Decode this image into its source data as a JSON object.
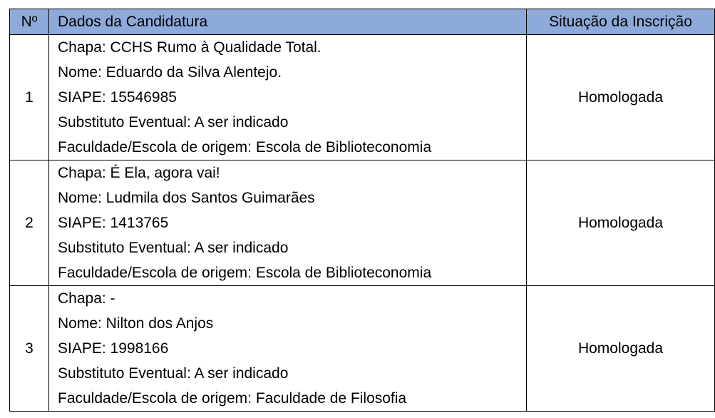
{
  "header": {
    "num": "Nº",
    "data": "Dados da Candidatura",
    "status": "Situação da Inscrição"
  },
  "rows": [
    {
      "num": "1",
      "lines": [
        "Chapa: CCHS Rumo à Qualidade Total.",
        "Nome: Eduardo da Silva Alentejo.",
        "SIAPE: 15546985",
        "Substituto Eventual: A ser indicado",
        "Faculdade/Escola de origem: Escola de Biblioteconomia"
      ],
      "status": "Homologada"
    },
    {
      "num": "2",
      "lines": [
        "Chapa: É Ela, agora vai!",
        "Nome: Ludmila dos Santos Guimarães",
        "SIAPE: 1413765",
        "Substituto Eventual: A ser indicado",
        "Faculdade/Escola de origem: Escola de Biblioteconomia"
      ],
      "status": "Homologada"
    },
    {
      "num": "3",
      "lines": [
        "Chapa: -",
        "Nome: Nilton dos Anjos",
        "SIAPE: 1998166",
        "Substituto Eventual: A ser indicado",
        "Faculdade/Escola de origem: Faculdade de Filosofia"
      ],
      "status": "Homologada"
    }
  ]
}
